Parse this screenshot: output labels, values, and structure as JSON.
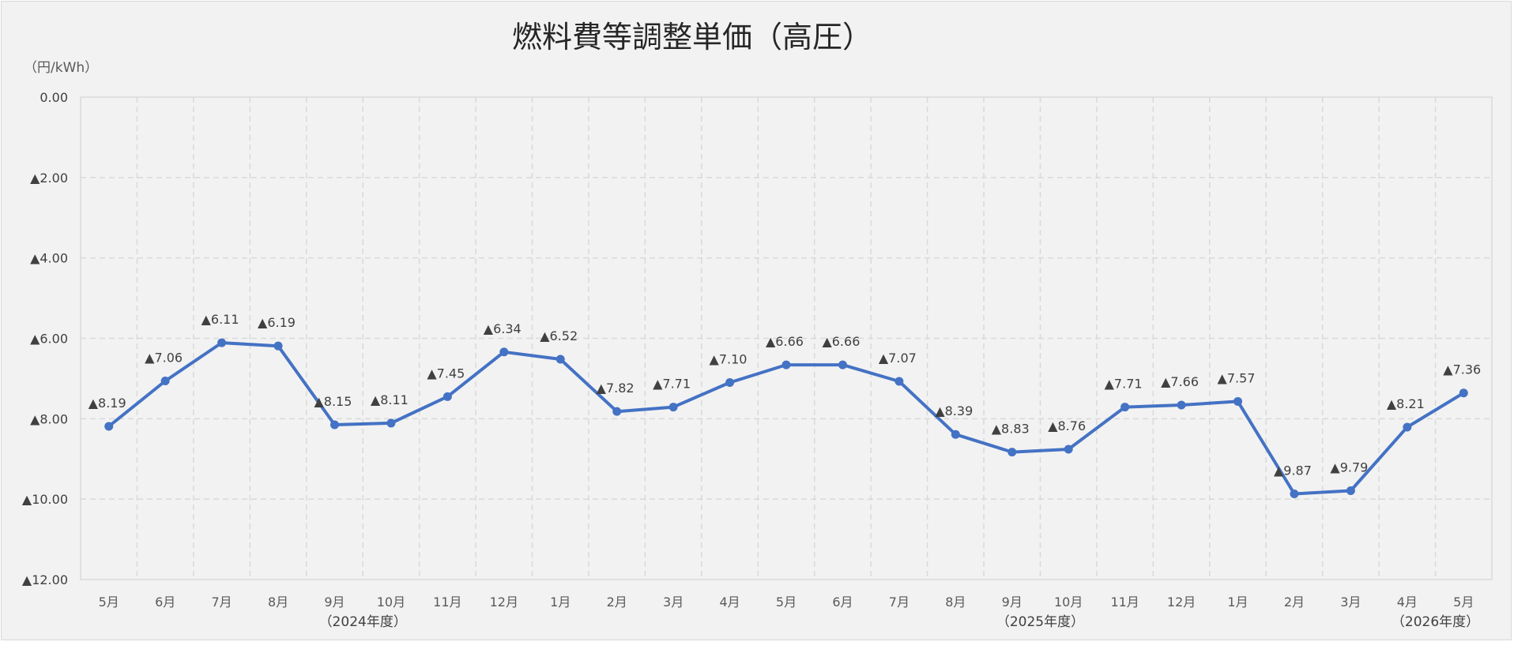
{
  "chart_data": {
    "type": "line",
    "title": "燃料費等調整単価（高圧）",
    "ylabel": "（円/kWh）",
    "xlabel": "",
    "categories": [
      "5月",
      "6月",
      "7月",
      "8月",
      "9月",
      "10月",
      "11月",
      "12月",
      "1月",
      "2月",
      "3月",
      "4月",
      "5月",
      "6月",
      "7月",
      "8月",
      "9月",
      "10月",
      "11月",
      "12月",
      "1月",
      "2月",
      "3月",
      "4月",
      "5月"
    ],
    "series": [
      {
        "values": [
          -8.19,
          -7.06,
          -6.11,
          -6.19,
          -8.15,
          -8.11,
          -7.45,
          -6.34,
          -6.52,
          -7.82,
          -7.71,
          -7.1,
          -6.66,
          -6.66,
          -7.07,
          -8.39,
          -8.83,
          -8.76,
          -7.71,
          -7.66,
          -7.57,
          -9.87,
          -9.79,
          -8.21,
          -7.36
        ],
        "data_labels": [
          "▲8.19",
          "▲7.06",
          "▲6.11",
          "▲6.19",
          "▲8.15",
          "▲8.11",
          "▲7.45",
          "▲6.34",
          "▲6.52",
          "▲7.82",
          "▲7.71",
          "▲7.10",
          "▲6.66",
          "▲6.66",
          "▲7.07",
          "▲8.39",
          "▲8.83",
          "▲8.76",
          "▲7.71",
          "▲7.66",
          "▲7.57",
          "▲9.87",
          "▲9.79",
          "▲8.21",
          "▲7.36"
        ],
        "color": "#4472c4"
      }
    ],
    "ylim": [
      -12,
      0
    ],
    "y_ticks": [
      0,
      -2,
      -4,
      -6,
      -8,
      -10,
      -12
    ],
    "y_tick_labels": [
      "0.00",
      "▲2.00",
      "▲4.00",
      "▲6.00",
      "▲8.00",
      "▲10.00",
      "▲12.00"
    ],
    "fiscal_year_labels": [
      {
        "text": "（2024年度）",
        "under_index": 4.5
      },
      {
        "text": "（2025年度）",
        "under_index": 16.5
      },
      {
        "text": "（2026年度）",
        "under_index": 23.5
      }
    ],
    "grid": true,
    "legend": "none"
  },
  "colors": {
    "background": "#f2f2f2",
    "line": "#4472c4",
    "grid": "#d9d9d9",
    "text": "#404040"
  }
}
